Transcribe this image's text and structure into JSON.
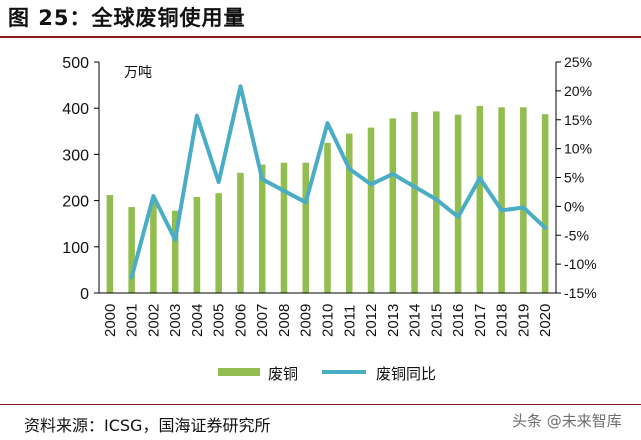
{
  "header": {
    "title": "图 25：全球废铜使用量"
  },
  "footer": {
    "source": "资料来源：ICSG，国海证券研究所",
    "watermark": "头条 @未来智库"
  },
  "chart_data": {
    "type": "bar+line",
    "title": "图 25：全球废铜使用量",
    "categories": [
      "2000",
      "2001",
      "2002",
      "2003",
      "2004",
      "2005",
      "2006",
      "2007",
      "2008",
      "2009",
      "2010",
      "2011",
      "2012",
      "2013",
      "2014",
      "2015",
      "2016",
      "2017",
      "2018",
      "2019",
      "2020"
    ],
    "unit_label": "万吨",
    "left_axis": {
      "ylim": [
        0,
        500
      ],
      "ticks": [
        "0",
        "100",
        "200",
        "300",
        "400",
        "500"
      ]
    },
    "right_axis": {
      "ylim": [
        -15,
        25
      ],
      "ticks": [
        "-15%",
        "-10%",
        "-5%",
        "0%",
        "5%",
        "10%",
        "15%",
        "20%",
        "25%"
      ]
    },
    "series": [
      {
        "name": "废铜",
        "type": "bar",
        "axis": "left",
        "color": "#92bd4f",
        "values": [
          212,
          186,
          197,
          178,
          208,
          216,
          260,
          278,
          282,
          282,
          325,
          345,
          358,
          378,
          392,
          393,
          386,
          405,
          402,
          402,
          387
        ]
      },
      {
        "name": "废铜同比",
        "type": "line",
        "axis": "right",
        "color": "#4aacc5",
        "values": [
          null,
          -12.3,
          1.8,
          -5.8,
          15.7,
          4.2,
          20.8,
          4.7,
          2.7,
          0.7,
          14.4,
          6.5,
          3.8,
          5.6,
          3.4,
          1.2,
          -1.8,
          4.9,
          -0.7,
          -0.2,
          -3.7
        ]
      }
    ],
    "legend": {
      "placement": "bottom-center",
      "items": [
        "废铜",
        "废铜同比"
      ]
    }
  }
}
